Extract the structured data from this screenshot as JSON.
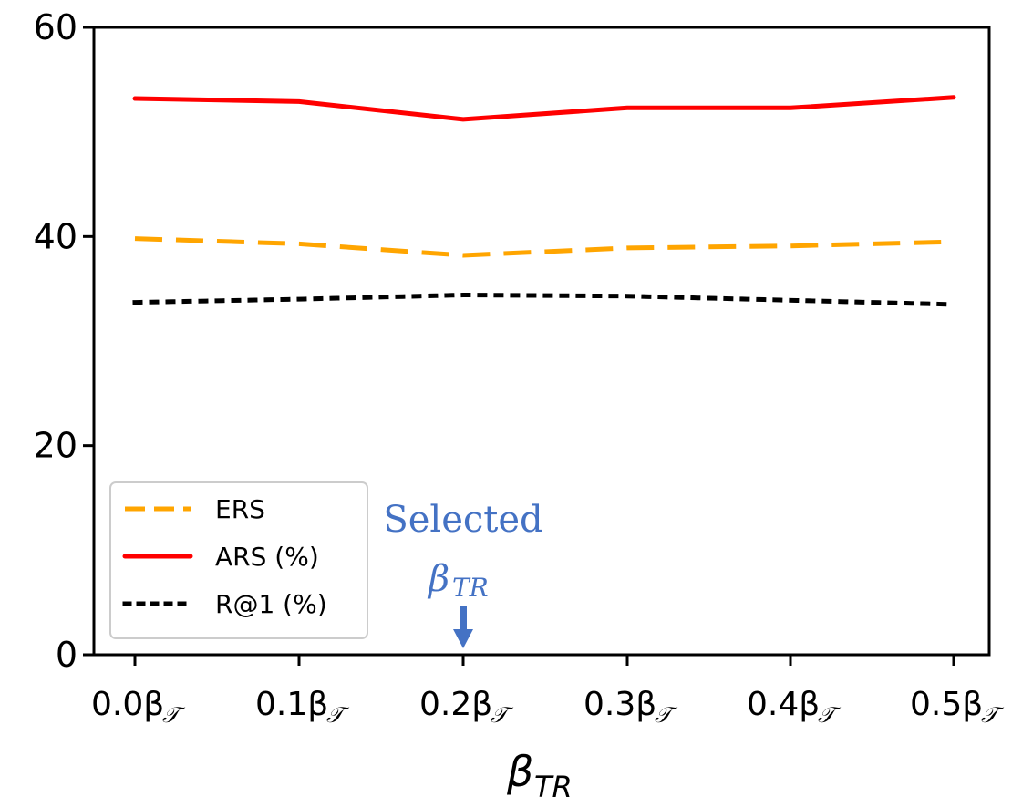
{
  "chart_data": {
    "type": "line",
    "title": "",
    "xlabel": "β",
    "xlabel_sub": "TR",
    "ylabel": "",
    "ylim": [
      0,
      60
    ],
    "yticks": [
      "0",
      "20",
      "40",
      "60"
    ],
    "categories": [
      "0.0β",
      "0.1β",
      "0.2β",
      "0.3β",
      "0.4β",
      "0.5β"
    ],
    "category_sub": "𝒯",
    "series": [
      {
        "name": "ERS",
        "style": "dashed",
        "color": "#ffa500",
        "values": [
          39.8,
          39.3,
          38.2,
          38.9,
          39.1,
          39.5
        ]
      },
      {
        "name": "ARS (%)",
        "style": "solid",
        "color": "#ff0000",
        "values": [
          53.2,
          52.9,
          51.2,
          52.3,
          52.3,
          53.3
        ]
      },
      {
        "name": "R@1 (%)",
        "style": "dotted",
        "color": "#000000",
        "values": [
          33.7,
          34.0,
          34.4,
          34.3,
          33.9,
          33.5
        ]
      }
    ],
    "legend_position": "lower-left",
    "annotation": {
      "text": "Selected",
      "beta": "β",
      "beta_sub": "TR",
      "category_index": 2,
      "color": "#4472c4"
    }
  }
}
